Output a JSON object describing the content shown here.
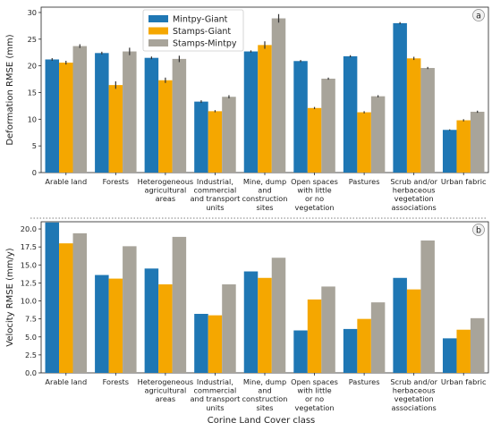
{
  "chart_data": [
    {
      "type": "bar",
      "panel_label": "a",
      "ylabel": "Deformation RMSE (mm)",
      "ylim": [
        0,
        31
      ],
      "yticks": [
        0,
        5,
        10,
        15,
        20,
        25,
        30
      ],
      "grid": false,
      "legend_position": "top-left",
      "categories": [
        "Arable land",
        "Forests",
        "Heterogeneous\nagricultural\nareas",
        "Industrial,\ncommercial\nand transport\nunits",
        "Mine, dump\nand\nconstruction\nsites",
        "Open spaces\nwith little\nor no\nvegetation",
        "Pastures",
        "Scrub and/or\nherbaceous\nvegetation\nassociations",
        "Urban fabric"
      ],
      "series": [
        {
          "name": "Mintpy-Giant",
          "color": "#1f77b4",
          "values": [
            21.2,
            22.4,
            21.5,
            13.3,
            22.7,
            20.9,
            21.8,
            28.0,
            8.0
          ],
          "errors": [
            0.25,
            0.25,
            0.25,
            0.25,
            0.2,
            0.2,
            0.2,
            0.2,
            0.1
          ]
        },
        {
          "name": "Stamps-Giant",
          "color": "#f5a700",
          "values": [
            20.6,
            16.4,
            17.3,
            11.5,
            23.9,
            12.1,
            11.3,
            21.4,
            9.8
          ],
          "errors": [
            0.35,
            0.7,
            0.5,
            0.2,
            0.7,
            0.2,
            0.2,
            0.3,
            0.2
          ]
        },
        {
          "name": "Stamps-Mintpy",
          "color": "#a8a49a",
          "values": [
            23.7,
            22.7,
            21.3,
            14.2,
            28.9,
            17.6,
            14.3,
            19.6,
            11.4
          ],
          "errors": [
            0.35,
            0.7,
            0.6,
            0.3,
            0.8,
            0.2,
            0.2,
            0.2,
            0.2
          ]
        }
      ]
    },
    {
      "type": "bar",
      "panel_label": "b",
      "ylabel": "Velocity RMSE (mm/y)",
      "xlabel": "Corine Land Cover class",
      "ylim": [
        0,
        21
      ],
      "yticks": [
        "0.0",
        "2.5",
        "5.0",
        "7.5",
        "10.0",
        "12.5",
        "15.0",
        "17.5",
        "20.0"
      ],
      "grid": false,
      "categories": [
        "Arable land",
        "Forests",
        "Heterogeneous\nagricultural\nareas",
        "Industrial,\ncommercial\nand transport\nunits",
        "Mine, dump\nand\nconstruction\nsites",
        "Open spaces\nwith little\nor no\nvegetation",
        "Pastures",
        "Scrub and/or\nherbaceous\nvegetation\nassociations",
        "Urban fabric"
      ],
      "series": [
        {
          "name": "Mintpy-Giant",
          "color": "#1f77b4",
          "values": [
            20.9,
            13.6,
            14.5,
            8.2,
            14.1,
            5.9,
            6.1,
            13.2,
            4.8
          ]
        },
        {
          "name": "Stamps-Giant",
          "color": "#f5a700",
          "values": [
            18.0,
            13.1,
            12.3,
            8.0,
            13.2,
            10.2,
            7.5,
            11.6,
            6.0
          ]
        },
        {
          "name": "Stamps-Mintpy",
          "color": "#a8a49a",
          "values": [
            19.4,
            17.6,
            18.9,
            12.3,
            16.0,
            12.0,
            9.8,
            18.4,
            7.6
          ]
        }
      ]
    }
  ]
}
